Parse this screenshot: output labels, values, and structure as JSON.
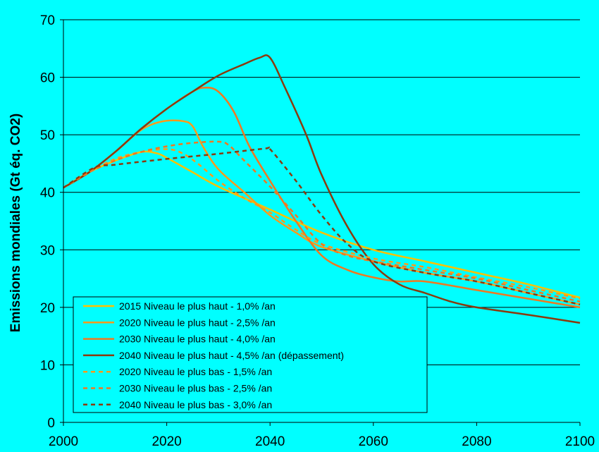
{
  "chart_data": {
    "type": "line",
    "ylabel": "Emissions mondiales (Gt éq. CO2)",
    "xlabel": "",
    "xlim": [
      2000,
      2100
    ],
    "ylim": [
      0,
      70
    ],
    "x_ticks": [
      "2000",
      "2020",
      "2040",
      "2060",
      "2080",
      "2100"
    ],
    "y_ticks": [
      "0",
      "10",
      "20",
      "30",
      "40",
      "50",
      "60",
      "70"
    ],
    "grid": "horizontal",
    "legend_placement": "bottom-left",
    "colors": {
      "background": "#00FFFF",
      "plot_background": "#00FFFF",
      "series_2015": "#FFC000",
      "series_2020": "#FF9A1A",
      "series_2030": "#F07820",
      "series_2040": "#8B3A0E"
    },
    "series": [
      {
        "name": "2015 Niveau le plus haut - 1,0% /an",
        "color": "#FFC000",
        "dash": false,
        "points": [
          [
            2000,
            40.8
          ],
          [
            2005,
            43.5
          ],
          [
            2010,
            45.5
          ],
          [
            2015,
            47.0
          ],
          [
            2018,
            46.8
          ],
          [
            2020,
            46
          ],
          [
            2025,
            43.5
          ],
          [
            2030,
            41
          ],
          [
            2040,
            37
          ],
          [
            2050,
            33
          ],
          [
            2060,
            30
          ],
          [
            2070,
            28
          ],
          [
            2080,
            26
          ],
          [
            2090,
            24
          ],
          [
            2100,
            21.7
          ]
        ]
      },
      {
        "name": "2020 Niveau le plus haut - 2,5% /an",
        "color": "#FF9A1A",
        "dash": false,
        "points": [
          [
            2000,
            40.8
          ],
          [
            2005,
            43.5
          ],
          [
            2010,
            47
          ],
          [
            2015,
            50.8
          ],
          [
            2019,
            52.3
          ],
          [
            2023,
            52.4
          ],
          [
            2025,
            51.5
          ],
          [
            2027,
            48
          ],
          [
            2030,
            44
          ],
          [
            2035,
            40
          ],
          [
            2040,
            36
          ],
          [
            2045,
            33
          ],
          [
            2050,
            30.5
          ],
          [
            2060,
            28
          ],
          [
            2070,
            26
          ],
          [
            2080,
            24.5
          ],
          [
            2090,
            22.5
          ],
          [
            2100,
            20.5
          ]
        ]
      },
      {
        "name": "2030 Niveau le plus haut - 4,0% /an",
        "color": "#F07820",
        "dash": false,
        "points": [
          [
            2000,
            40.8
          ],
          [
            2005,
            43.5
          ],
          [
            2010,
            47
          ],
          [
            2015,
            51
          ],
          [
            2020,
            54.5
          ],
          [
            2025,
            57.5
          ],
          [
            2027.5,
            58.2
          ],
          [
            2030,
            57.5
          ],
          [
            2033,
            54
          ],
          [
            2036,
            48
          ],
          [
            2040,
            42
          ],
          [
            2045,
            35
          ],
          [
            2050,
            29
          ],
          [
            2055,
            26.5
          ],
          [
            2060,
            25.2
          ],
          [
            2065,
            24.5
          ],
          [
            2070,
            24.5
          ],
          [
            2080,
            23
          ],
          [
            2090,
            21.5
          ],
          [
            2100,
            20
          ]
        ]
      },
      {
        "name": "2040 Niveau le plus haut -  4,5% /an (dépassement)",
        "color": "#8B3A0E",
        "dash": false,
        "points": [
          [
            2000,
            40.8
          ],
          [
            2005,
            43.5
          ],
          [
            2010,
            47
          ],
          [
            2015,
            51
          ],
          [
            2020,
            54.5
          ],
          [
            2025,
            57.5
          ],
          [
            2030,
            60.3
          ],
          [
            2035,
            62.3
          ],
          [
            2038,
            63.4
          ],
          [
            2040,
            63.4
          ],
          [
            2043,
            58
          ],
          [
            2047,
            50
          ],
          [
            2050,
            43
          ],
          [
            2055,
            34
          ],
          [
            2060,
            27.5
          ],
          [
            2065,
            24
          ],
          [
            2070,
            22.5
          ],
          [
            2075,
            21
          ],
          [
            2080,
            20
          ],
          [
            2090,
            18.7
          ],
          [
            2100,
            17.3
          ]
        ]
      },
      {
        "name": "2020 Niveau le plus bas - 1,5% /an",
        "color": "#FF9A1A",
        "dash": true,
        "points": [
          [
            2000,
            40.8
          ],
          [
            2005,
            43.5
          ],
          [
            2010,
            45.8
          ],
          [
            2015,
            47
          ],
          [
            2020,
            47.5
          ],
          [
            2023,
            46.8
          ],
          [
            2026,
            45
          ],
          [
            2030,
            42
          ],
          [
            2035,
            39
          ],
          [
            2040,
            36.5
          ],
          [
            2045,
            33.5
          ],
          [
            2050,
            31
          ],
          [
            2060,
            28.5
          ],
          [
            2070,
            27
          ],
          [
            2080,
            25.2
          ],
          [
            2090,
            23.5
          ],
          [
            2100,
            21.5
          ]
        ]
      },
      {
        "name": "2030 Niveau le plus bas - 2,5% /an",
        "color": "#F07820",
        "dash": true,
        "points": [
          [
            2000,
            40.8
          ],
          [
            2005,
            43.5
          ],
          [
            2010,
            45.5
          ],
          [
            2015,
            47
          ],
          [
            2020,
            48
          ],
          [
            2025,
            48.6
          ],
          [
            2030,
            48.8
          ],
          [
            2032,
            48.2
          ],
          [
            2035,
            45.5
          ],
          [
            2040,
            41
          ],
          [
            2045,
            36
          ],
          [
            2050,
            31
          ],
          [
            2055,
            29
          ],
          [
            2060,
            28
          ],
          [
            2070,
            26.5
          ],
          [
            2080,
            25
          ],
          [
            2090,
            23
          ],
          [
            2100,
            21
          ]
        ]
      },
      {
        "name": "2040 Niveau le plus bas - 3,0% /an",
        "color": "#8B3A0E",
        "dash": true,
        "points": [
          [
            2000,
            40.8
          ],
          [
            2006,
            44.3
          ],
          [
            2010,
            44.8
          ],
          [
            2020,
            45.8
          ],
          [
            2030,
            46.7
          ],
          [
            2039,
            47.6
          ],
          [
            2040,
            47.5
          ],
          [
            2045,
            42
          ],
          [
            2050,
            36
          ],
          [
            2055,
            31
          ],
          [
            2060,
            28
          ],
          [
            2070,
            26
          ],
          [
            2080,
            24.5
          ],
          [
            2090,
            22.5
          ],
          [
            2100,
            20.5
          ]
        ]
      }
    ]
  }
}
